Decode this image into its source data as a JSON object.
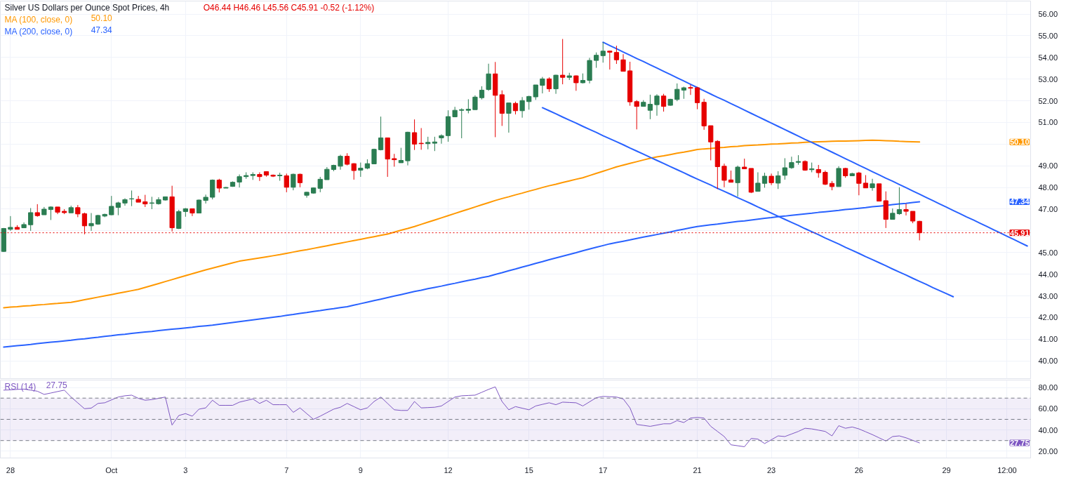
{
  "chart_data": [
    {
      "type": "candlestick",
      "title": "Silver US Dollars per Ounce Spot Prices, 4h",
      "subtitle": "O46.44 H46.46 L45.56 C45.91 -0.52 (-1.12%)",
      "categories": [
        null,
        null,
        null,
        null,
        null,
        null,
        null,
        null,
        null,
        null,
        null,
        null,
        null,
        null,
        null,
        null,
        null,
        null,
        null,
        null,
        null,
        null,
        null,
        null,
        null,
        null,
        null,
        null,
        null,
        null,
        null,
        null,
        null,
        null,
        null,
        null,
        null,
        null,
        null,
        null,
        null,
        null,
        null,
        null,
        null,
        null,
        null,
        null,
        null,
        null,
        null,
        null,
        null,
        null,
        null,
        null,
        null,
        null,
        null,
        null,
        null,
        null,
        null,
        null,
        null,
        null,
        null,
        null,
        null,
        null,
        null,
        null,
        null,
        null,
        null,
        null,
        null,
        null,
        null,
        null,
        null,
        null,
        null,
        null,
        null,
        null,
        null,
        null,
        null,
        null,
        null,
        null,
        null,
        null,
        null,
        null,
        null,
        null,
        null,
        null,
        null,
        null,
        null,
        null,
        null,
        null,
        null,
        null,
        null,
        null,
        null,
        null,
        null,
        null,
        null,
        null,
        null,
        null,
        null,
        null,
        null,
        null,
        null,
        null,
        null,
        null,
        null,
        null,
        null,
        null,
        null,
        null,
        null,
        null,
        null,
        null,
        null,
        null,
        null,
        null,
        null,
        null,
        null,
        null,
        null,
        null,
        null,
        null,
        null,
        null,
        null,
        null,
        null
      ],
      "ohlc": [
        [
          45.05,
          46.13,
          45.03,
          46.11
        ],
        [
          46.07,
          46.68,
          46.0,
          46.16
        ],
        [
          46.16,
          46.26,
          46.07,
          46.07
        ],
        [
          46.14,
          46.39,
          46.14,
          46.29
        ],
        [
          46.28,
          47.05,
          46.0,
          46.84
        ],
        [
          46.84,
          47.23,
          46.65,
          46.7
        ],
        [
          46.74,
          47.1,
          46.74,
          47.0
        ],
        [
          46.98,
          47.13,
          46.5,
          47.1
        ],
        [
          47.1,
          47.1,
          46.77,
          46.86
        ],
        [
          46.9,
          47.0,
          46.77,
          46.84
        ],
        [
          46.83,
          47.16,
          46.83,
          47.07
        ],
        [
          47.07,
          47.19,
          46.63,
          46.78
        ],
        [
          46.79,
          46.84,
          45.84,
          46.23
        ],
        [
          46.23,
          46.82,
          46.0,
          46.34
        ],
        [
          46.31,
          46.74,
          46.28,
          46.71
        ],
        [
          46.68,
          46.79,
          46.63,
          46.76
        ],
        [
          46.74,
          47.61,
          46.72,
          47.13
        ],
        [
          47.08,
          47.34,
          46.72,
          47.29
        ],
        [
          47.28,
          47.5,
          47.16,
          47.44
        ],
        [
          47.47,
          47.86,
          47.14,
          47.48
        ],
        [
          47.45,
          47.61,
          47.32,
          47.32
        ],
        [
          47.34,
          47.66,
          47.1,
          47.24
        ],
        [
          47.27,
          47.57,
          47.0,
          47.29
        ],
        [
          47.25,
          47.55,
          47.21,
          47.44
        ],
        [
          47.42,
          47.57,
          47.4,
          47.57
        ],
        [
          47.57,
          48.08,
          45.97,
          46.14
        ],
        [
          46.11,
          46.97,
          46.08,
          46.89
        ],
        [
          46.89,
          47.05,
          46.65,
          47.02
        ],
        [
          47.02,
          47.02,
          46.68,
          46.82
        ],
        [
          46.82,
          47.44,
          46.82,
          47.42
        ],
        [
          47.4,
          47.67,
          47.26,
          47.55
        ],
        [
          47.55,
          48.37,
          47.45,
          48.34
        ],
        [
          48.34,
          48.4,
          47.77,
          47.97
        ],
        [
          47.97,
          48.03,
          47.97,
          48.0
        ],
        [
          48.05,
          48.28,
          48.03,
          48.24
        ],
        [
          48.25,
          48.6,
          48.0,
          48.5
        ],
        [
          48.5,
          48.7,
          48.4,
          48.55
        ],
        [
          48.55,
          48.7,
          48.35,
          48.6
        ],
        [
          48.6,
          48.7,
          48.3,
          48.5
        ],
        [
          48.73,
          48.75,
          48.5,
          48.57
        ],
        [
          48.57,
          48.6,
          48.48,
          48.52
        ],
        [
          48.54,
          48.68,
          48.31,
          48.57
        ],
        [
          48.54,
          48.64,
          47.78,
          48.01
        ],
        [
          48.01,
          48.64,
          47.87,
          48.61
        ],
        [
          48.61,
          48.64,
          48.01,
          48.22
        ],
        [
          47.64,
          47.8,
          47.53,
          47.78
        ],
        [
          47.74,
          48.0,
          47.72,
          47.98
        ],
        [
          47.96,
          48.49,
          47.78,
          48.38
        ],
        [
          48.36,
          48.94,
          48.36,
          48.84
        ],
        [
          48.83,
          49.05,
          48.75,
          49.02
        ],
        [
          48.98,
          49.51,
          48.82,
          49.44
        ],
        [
          49.44,
          49.58,
          49.02,
          49.07
        ],
        [
          49.1,
          49.12,
          48.36,
          48.78
        ],
        [
          48.8,
          49.15,
          48.49,
          48.89
        ],
        [
          48.89,
          49.3,
          48.84,
          49.1
        ],
        [
          49.09,
          49.79,
          49.09,
          49.76
        ],
        [
          49.74,
          51.27,
          49.71,
          50.29
        ],
        [
          50.29,
          50.29,
          48.49,
          49.31
        ],
        [
          49.33,
          49.55,
          48.96,
          49.28
        ],
        [
          49.14,
          49.83,
          49.14,
          49.25
        ],
        [
          49.23,
          50.57,
          49.02,
          50.55
        ],
        [
          50.53,
          51.14,
          49.73,
          50.0
        ],
        [
          50.04,
          50.74,
          49.74,
          50.02
        ],
        [
          50.02,
          50.34,
          49.76,
          50.08
        ],
        [
          50.04,
          50.34,
          49.68,
          50.1
        ],
        [
          50.29,
          50.45,
          50.02,
          50.39
        ],
        [
          50.39,
          51.56,
          50.11,
          51.27
        ],
        [
          51.26,
          51.72,
          51.24,
          51.56
        ],
        [
          51.56,
          51.65,
          50.27,
          51.59
        ],
        [
          51.56,
          52.07,
          51.42,
          51.61
        ],
        [
          51.59,
          52.25,
          51.59,
          52.17
        ],
        [
          52.14,
          52.67,
          52.06,
          52.49
        ],
        [
          52.52,
          53.71,
          52.46,
          53.24
        ],
        [
          53.24,
          53.79,
          50.32,
          52.25
        ],
        [
          52.28,
          52.48,
          50.84,
          51.42
        ],
        [
          51.42,
          51.9,
          50.53,
          51.9
        ],
        [
          51.88,
          51.96,
          51.37,
          51.54
        ],
        [
          51.54,
          52.17,
          51.22,
          52.01
        ],
        [
          51.96,
          52.23,
          51.59,
          52.2
        ],
        [
          52.18,
          52.73,
          52.04,
          52.73
        ],
        [
          52.71,
          53.1,
          52.34,
          53.01
        ],
        [
          53.01,
          53.08,
          52.41,
          52.55
        ],
        [
          52.55,
          53.2,
          52.32,
          53.18
        ],
        [
          53.18,
          54.85,
          52.76,
          53.08
        ],
        [
          53.08,
          53.29,
          52.96,
          53.15
        ],
        [
          53.15,
          53.17,
          52.46,
          52.83
        ],
        [
          52.83,
          53.26,
          52.8,
          52.94
        ],
        [
          52.94,
          53.98,
          52.8,
          53.86
        ],
        [
          53.86,
          54.23,
          53.52,
          54.1
        ],
        [
          54.08,
          54.7,
          53.76,
          54.29
        ],
        [
          54.29,
          54.31,
          53.44,
          54.24
        ],
        [
          54.23,
          54.54,
          53.7,
          53.89
        ],
        [
          53.89,
          54.15,
          53.36,
          53.36
        ],
        [
          53.38,
          53.8,
          51.77,
          51.95
        ],
        [
          51.96,
          52.03,
          50.68,
          51.74
        ],
        [
          51.74,
          52.03,
          51.74,
          51.93
        ],
        [
          51.56,
          52.28,
          51.15,
          51.84
        ],
        [
          51.82,
          52.3,
          51.31,
          52.22
        ],
        [
          52.22,
          52.32,
          51.5,
          51.74
        ],
        [
          51.79,
          52.09,
          51.77,
          52.07
        ],
        [
          52.06,
          52.8,
          51.98,
          52.53
        ],
        [
          52.49,
          52.65,
          52.09,
          52.6
        ],
        [
          52.61,
          52.74,
          52.27,
          52.58
        ],
        [
          52.6,
          52.64,
          51.61,
          51.91
        ],
        [
          51.93,
          52.09,
          50.66,
          50.84
        ],
        [
          50.85,
          50.85,
          49.25,
          50.1
        ],
        [
          50.13,
          50.18,
          47.93,
          48.96
        ],
        [
          48.98,
          49.1,
          48.01,
          48.33
        ],
        [
          48.35,
          48.78,
          48.24,
          48.24
        ],
        [
          48.22,
          49.01,
          47.58,
          48.94
        ],
        [
          48.94,
          49.33,
          48.86,
          48.86
        ],
        [
          48.88,
          48.88,
          47.74,
          47.78
        ],
        [
          47.82,
          48.7,
          47.82,
          48.2
        ],
        [
          48.19,
          48.68,
          47.99,
          48.52
        ],
        [
          48.52,
          48.64,
          48.11,
          48.22
        ],
        [
          48.2,
          48.75,
          47.93,
          48.54
        ],
        [
          48.56,
          49.35,
          48.36,
          48.91
        ],
        [
          48.91,
          49.42,
          48.86,
          49.15
        ],
        [
          49.16,
          49.49,
          49.05,
          49.2
        ],
        [
          49.2,
          49.25,
          48.77,
          48.8
        ],
        [
          48.82,
          49.15,
          48.7,
          48.86
        ],
        [
          48.83,
          49.04,
          48.45,
          48.68
        ],
        [
          48.7,
          48.78,
          48.11,
          48.15
        ],
        [
          48.19,
          48.3,
          47.87,
          48.04
        ],
        [
          48.04,
          48.98,
          48.04,
          48.88
        ],
        [
          48.88,
          48.91,
          48.45,
          48.54
        ],
        [
          48.54,
          48.68,
          48.54,
          48.64
        ],
        [
          48.67,
          48.72,
          47.64,
          48.19
        ],
        [
          48.2,
          48.57,
          47.98,
          47.98
        ],
        [
          47.99,
          48.4,
          47.85,
          48.17
        ],
        [
          48.17,
          48.17,
          47.37,
          47.37
        ],
        [
          47.39,
          47.82,
          46.13,
          46.53
        ],
        [
          46.53,
          47.03,
          46.53,
          46.81
        ],
        [
          46.79,
          48.01,
          46.74,
          46.98
        ],
        [
          46.98,
          47.25,
          46.71,
          46.9
        ],
        [
          46.9,
          46.9,
          46.35,
          46.45
        ],
        [
          46.44,
          46.46,
          45.56,
          45.91
        ],
        null,
        null,
        null,
        null,
        null,
        null,
        null,
        null,
        null,
        null,
        null,
        null,
        null,
        null,
        null,
        null
      ],
      "colors": [
        "#2b7d52",
        "#2b7d52",
        "#e60000",
        "#2b7d52",
        "#2b7d52",
        "#e60000",
        "#2b7d52",
        "#2b7d52",
        "#e60000",
        "#e60000",
        "#2b7d52",
        "#e60000",
        "#e60000",
        "#2b7d52",
        "#2b7d52",
        "#2b7d52",
        "#2b7d52",
        "#2b7d52",
        "#2b7d52",
        "#2b7d52",
        "#e60000",
        "#e60000",
        "#2b7d52",
        "#2b7d52",
        "#2b7d52",
        "#e60000",
        "#2b7d52",
        "#2b7d52",
        "#e60000",
        "#2b7d52",
        "#2b7d52",
        "#2b7d52",
        "#e60000",
        "#2b7d52",
        "#2b7d52",
        "#2b7d52",
        "#2b7d52",
        "#2b7d52",
        "#e60000",
        "#e60000",
        "#e60000",
        "#2b7d52",
        "#e60000",
        "#2b7d52",
        "#e60000",
        "#2b7d52",
        "#2b7d52",
        "#2b7d52",
        "#2b7d52",
        "#2b7d52",
        "#2b7d52",
        "#e60000",
        "#e60000",
        "#2b7d52",
        "#2b7d52",
        "#2b7d52",
        "#2b7d52",
        "#e60000",
        "#e60000",
        "#2b7d52",
        "#2b7d52",
        "#e60000",
        "#e60000",
        "#2b7d52",
        "#2b7d52",
        "#2b7d52",
        "#2b7d52",
        "#2b7d52",
        "#2b7d52",
        "#2b7d52",
        "#2b7d52",
        "#2b7d52",
        "#2b7d52",
        "#e60000",
        "#e60000",
        "#2b7d52",
        "#e60000",
        "#2b7d52",
        "#2b7d52",
        "#2b7d52",
        "#2b7d52",
        "#e60000",
        "#2b7d52",
        "#e60000",
        "#2b7d52",
        "#e60000",
        "#2b7d52",
        "#2b7d52",
        "#2b7d52",
        "#2b7d52",
        "#e60000",
        "#e60000",
        "#e60000",
        "#e60000",
        "#e60000",
        "#2b7d52",
        "#2b7d52",
        "#2b7d52",
        "#e60000",
        "#2b7d52",
        "#2b7d52",
        "#2b7d52",
        "#e60000",
        "#e60000",
        "#e60000",
        "#e60000",
        "#e60000",
        "#e60000",
        "#e60000",
        "#2b7d52",
        "#e60000",
        "#e60000",
        "#2b7d52",
        "#2b7d52",
        "#e60000",
        "#2b7d52",
        "#2b7d52",
        "#2b7d52",
        "#2b7d52",
        "#e60000",
        "#2b7d52",
        "#e60000",
        "#e60000",
        "#e60000",
        "#2b7d52",
        "#e60000",
        "#2b7d52",
        "#e60000",
        "#e60000",
        "#2b7d52",
        "#e60000",
        "#e60000",
        "#2b7d52",
        "#2b7d52",
        "#e60000",
        "#e60000",
        "#e60000",
        null,
        null,
        null,
        null,
        null,
        null,
        null,
        null,
        null,
        null,
        null,
        null,
        null,
        null,
        null,
        null
      ],
      "series": [
        {
          "type": "line",
          "name": "MA (100, close, 0)",
          "color": "#ff9800",
          "values": [
            42.45,
            42.48,
            42.5,
            42.53,
            42.55,
            42.58,
            42.6,
            42.63,
            42.65,
            42.68,
            42.7,
            42.76,
            42.82,
            42.88,
            42.94,
            43.0,
            43.06,
            43.12,
            43.18,
            43.24,
            43.3,
            43.39,
            43.48,
            43.57,
            43.66,
            43.75,
            43.84,
            43.93,
            44.02,
            44.11,
            44.2,
            44.28,
            44.36,
            44.44,
            44.52,
            44.6,
            44.65,
            44.7,
            44.75,
            44.8,
            44.85,
            44.9,
            44.96,
            45.02,
            45.08,
            45.13,
            45.19,
            45.25,
            45.31,
            45.37,
            45.43,
            45.49,
            45.55,
            45.61,
            45.67,
            45.73,
            45.79,
            45.85,
            45.94,
            46.03,
            46.11,
            46.2,
            46.3,
            46.4,
            46.5,
            46.6,
            46.7,
            46.8,
            46.9,
            47.0,
            47.1,
            47.2,
            47.3,
            47.4,
            47.49,
            47.57,
            47.66,
            47.74,
            47.83,
            47.91,
            48.0,
            48.08,
            48.15,
            48.23,
            48.3,
            48.38,
            48.45,
            48.55,
            48.65,
            48.75,
            48.85,
            48.95,
            49.03,
            49.11,
            49.19,
            49.27,
            49.35,
            49.41,
            49.46,
            49.52,
            49.58,
            49.63,
            49.69,
            49.75,
            49.78,
            49.8,
            49.83,
            49.85,
            49.88,
            49.9,
            49.93,
            49.95,
            49.96,
            49.98,
            50.0,
            50.01,
            50.03,
            50.05,
            50.06,
            50.08,
            50.1,
            50.11,
            50.12,
            50.13,
            50.14,
            50.14,
            50.15,
            50.16,
            50.17,
            50.18,
            50.17,
            50.16,
            50.15,
            50.13,
            50.12,
            50.11,
            50.1,
            null,
            null,
            null,
            null,
            null,
            null,
            null,
            null,
            null,
            null,
            null,
            null,
            null,
            null,
            null,
            null
          ]
        },
        {
          "type": "line",
          "name": "MA (200, close, 0)",
          "color": "#2962ff",
          "values": [
            40.64,
            40.67,
            40.7,
            40.73,
            40.76,
            40.8,
            40.83,
            40.86,
            40.89,
            40.92,
            40.95,
            40.99,
            41.02,
            41.06,
            41.09,
            41.13,
            41.16,
            41.2,
            41.23,
            41.27,
            41.3,
            41.33,
            41.36,
            41.4,
            41.43,
            41.46,
            41.49,
            41.52,
            41.55,
            41.59,
            41.62,
            41.65,
            41.69,
            41.73,
            41.77,
            41.81,
            41.85,
            41.89,
            41.93,
            41.97,
            42.01,
            42.05,
            42.1,
            42.14,
            42.19,
            42.23,
            42.28,
            42.32,
            42.37,
            42.41,
            42.46,
            42.5,
            42.57,
            42.64,
            42.71,
            42.78,
            42.85,
            42.92,
            42.99,
            43.06,
            43.13,
            43.2,
            43.26,
            43.33,
            43.39,
            43.45,
            43.52,
            43.58,
            43.65,
            43.71,
            43.77,
            43.84,
            43.9,
            43.99,
            44.07,
            44.16,
            44.24,
            44.33,
            44.41,
            44.5,
            44.58,
            44.67,
            44.75,
            44.83,
            44.91,
            44.99,
            45.08,
            45.16,
            45.24,
            45.32,
            45.4,
            45.46,
            45.52,
            45.58,
            45.65,
            45.71,
            45.77,
            45.83,
            45.89,
            45.95,
            46.02,
            46.08,
            46.14,
            46.2,
            46.24,
            46.28,
            46.31,
            46.35,
            46.39,
            46.43,
            46.46,
            46.5,
            46.54,
            46.58,
            46.61,
            46.65,
            46.68,
            46.72,
            46.75,
            46.78,
            46.81,
            46.85,
            46.88,
            46.91,
            46.94,
            46.98,
            47.01,
            47.04,
            47.07,
            47.11,
            47.14,
            47.17,
            47.21,
            47.24,
            47.27,
            47.31,
            47.34,
            null,
            null,
            null,
            null,
            null,
            null,
            null,
            null,
            null,
            null,
            null,
            null,
            null,
            null,
            null,
            null
          ]
        },
        {
          "type": "line",
          "color": "#2962ff",
          "values": [
            null,
            null,
            null,
            null,
            null,
            null,
            null,
            null,
            null,
            null,
            null,
            null,
            null,
            null,
            null,
            null,
            null,
            null,
            null,
            null,
            null,
            null,
            null,
            null,
            null,
            null,
            null,
            null,
            null,
            null,
            null,
            null,
            null,
            null,
            null,
            null,
            null,
            null,
            null,
            null,
            null,
            null,
            null,
            null,
            null,
            null,
            null,
            null,
            null,
            null,
            null,
            null,
            null,
            null,
            null,
            null,
            null,
            null,
            null,
            null,
            null,
            null,
            null,
            null,
            null,
            null,
            null,
            null,
            null,
            null,
            null,
            null,
            null,
            null,
            null,
            null,
            null,
            null,
            null,
            null,
            null,
            null,
            null,
            null,
            null,
            null,
            null,
            null,
            null,
            54.7,
            54.55,
            54.4,
            54.25,
            54.1,
            53.95,
            53.81,
            53.66,
            53.51,
            53.36,
            53.21,
            53.06,
            52.91,
            52.76,
            52.61,
            52.46,
            52.31,
            52.16,
            52.02,
            51.87,
            51.72,
            51.57,
            51.42,
            51.27,
            51.12,
            50.97,
            50.82,
            50.67,
            50.52,
            50.37,
            50.22,
            50.08,
            49.93,
            49.78,
            49.63,
            49.48,
            49.33,
            49.18,
            49.03,
            48.88,
            48.73,
            48.58,
            48.43,
            48.29,
            48.14,
            47.99,
            47.84,
            47.69,
            47.54,
            47.39,
            47.24,
            47.09,
            46.94,
            46.79,
            46.64,
            46.5,
            46.35,
            46.2,
            46.05,
            45.9,
            45.75,
            45.6,
            45.45,
            45.3
          ]
        },
        {
          "type": "line",
          "color": "#2962ff",
          "values": [
            null,
            null,
            null,
            null,
            null,
            null,
            null,
            null,
            null,
            null,
            null,
            null,
            null,
            null,
            null,
            null,
            null,
            null,
            null,
            null,
            null,
            null,
            null,
            null,
            null,
            null,
            null,
            null,
            null,
            null,
            null,
            null,
            null,
            null,
            null,
            null,
            null,
            null,
            null,
            null,
            null,
            null,
            null,
            null,
            null,
            null,
            null,
            null,
            null,
            null,
            null,
            null,
            null,
            null,
            null,
            null,
            null,
            null,
            null,
            null,
            null,
            null,
            null,
            null,
            null,
            null,
            null,
            null,
            null,
            null,
            null,
            null,
            null,
            null,
            null,
            null,
            null,
            null,
            null,
            null,
            51.68,
            51.54,
            51.4,
            51.25,
            51.11,
            50.97,
            50.82,
            50.68,
            50.54,
            50.39,
            50.25,
            50.11,
            49.97,
            49.82,
            49.68,
            49.54,
            49.39,
            49.25,
            49.11,
            48.96,
            48.82,
            48.68,
            48.53,
            48.39,
            48.25,
            48.11,
            47.96,
            47.82,
            47.68,
            47.53,
            47.39,
            47.25,
            47.1,
            46.96,
            46.82,
            46.67,
            46.53,
            46.39,
            46.25,
            46.1,
            45.96,
            45.82,
            45.67,
            45.53,
            45.39,
            45.24,
            45.1,
            44.96,
            44.81,
            44.67,
            44.53,
            44.39,
            44.24,
            44.1,
            43.96,
            43.81,
            43.67,
            43.53,
            43.38,
            43.24,
            43.1,
            42.96,
            null,
            null,
            null,
            null,
            null,
            null,
            null,
            null,
            null,
            null,
            null
          ]
        }
      ],
      "annotations": [
        "50.10",
        "47.34"
      ],
      "ref_lines": [
        {
          "axis": "y",
          "value": 45.91,
          "label": "45.91",
          "color": "#e60000",
          "line_style": "dotted"
        }
      ],
      "ylim": [
        39.18,
        56.6
      ],
      "yticks": [
        {
          "value": 40,
          "label": "40.00"
        },
        {
          "value": 41,
          "label": "41.00"
        },
        {
          "value": 42,
          "label": "42.00"
        },
        {
          "value": 43,
          "label": "43.00"
        },
        {
          "value": 44,
          "label": "44.00"
        },
        {
          "value": 45,
          "label": "45.00"
        },
        {
          "value": 46,
          "label": null
        },
        {
          "value": 47,
          "label": "47.00"
        },
        {
          "value": 48,
          "label": "48.00"
        },
        {
          "value": 49,
          "label": "49.00"
        },
        {
          "value": 50,
          "label": null
        },
        {
          "value": 51,
          "label": "51.00"
        },
        {
          "value": 52,
          "label": "52.00"
        },
        {
          "value": 53,
          "label": "53.00"
        },
        {
          "value": 54,
          "label": "54.00"
        },
        {
          "value": 55,
          "label": "55.00"
        },
        {
          "value": 56,
          "label": "56.00"
        }
      ],
      "tick_labels": "y",
      "grid": true,
      "legend": "top left",
      "line_style": "solid"
    },
    {
      "type": "line",
      "categories": [
        null,
        "28",
        null,
        null,
        null,
        null,
        null,
        null,
        null,
        null,
        null,
        null,
        null,
        null,
        null,
        null,
        "Oct",
        null,
        null,
        null,
        null,
        null,
        null,
        null,
        null,
        null,
        null,
        "3",
        null,
        null,
        null,
        null,
        null,
        null,
        null,
        null,
        null,
        null,
        null,
        null,
        null,
        null,
        "7",
        null,
        null,
        null,
        null,
        null,
        null,
        null,
        null,
        null,
        null,
        "9",
        null,
        null,
        null,
        null,
        null,
        null,
        null,
        null,
        null,
        null,
        null,
        null,
        "12",
        null,
        null,
        null,
        null,
        null,
        null,
        null,
        null,
        null,
        null,
        null,
        "15",
        null,
        null,
        null,
        null,
        null,
        null,
        null,
        null,
        null,
        null,
        "17",
        null,
        null,
        null,
        null,
        null,
        null,
        null,
        null,
        null,
        null,
        null,
        null,
        null,
        "21",
        null,
        null,
        null,
        null,
        null,
        null,
        null,
        null,
        null,
        null,
        "23",
        null,
        null,
        null,
        null,
        null,
        null,
        null,
        null,
        null,
        null,
        null,
        null,
        "26",
        null,
        null,
        null,
        null,
        null,
        null,
        null,
        null,
        null,
        null,
        null,
        null,
        "29",
        null,
        null,
        null,
        null,
        null,
        null,
        null,
        null,
        "12:00",
        null,
        null,
        null
      ],
      "series": [
        {
          "name": "RSI (14)",
          "color": "#7e57c2",
          "values": [
            77.5,
            77.8,
            78.2,
            78.5,
            77.5,
            76.5,
            73.5,
            74.8,
            76.2,
            77.5,
            71.0,
            65.5,
            60.0,
            60.6,
            65.0,
            65.6,
            68.3,
            71.0,
            72.2,
            72.8,
            69.8,
            68.0,
            68.6,
            69.8,
            71.0,
            44.6,
            53.6,
            55.4,
            53.0,
            59.6,
            60.8,
            68.0,
            63.2,
            63.2,
            63.2,
            66.2,
            67.7,
            69.2,
            65.0,
            68.0,
            63.8,
            63.8,
            63.8,
            56.6,
            60.8,
            55.4,
            50.0,
            53.0,
            56.3,
            59.6,
            61.4,
            65.0,
            62.0,
            59.0,
            60.8,
            66.8,
            71.0,
            65.0,
            59.0,
            58.4,
            58.4,
            66.8,
            60.8,
            61.1,
            61.4,
            62.6,
            66.8,
            71.0,
            72.2,
            72.5,
            72.8,
            75.5,
            78.2,
            80.6,
            66.8,
            59.0,
            62.0,
            60.5,
            59.0,
            62.6,
            64.1,
            65.6,
            63.8,
            66.2,
            65.9,
            65.6,
            62.6,
            66.5,
            70.4,
            71.6,
            71.3,
            71.0,
            69.2,
            60.8,
            45.2,
            44.3,
            43.4,
            44.6,
            45.8,
            45.8,
            48.8,
            47.0,
            51.2,
            51.8,
            51.2,
            43.4,
            38.6,
            33.8,
            26.0,
            25.1,
            24.2,
            32.0,
            31.4,
            27.2,
            30.8,
            34.4,
            33.8,
            36.2,
            38.6,
            41.6,
            41.0,
            39.8,
            38.6,
            34.4,
            44.0,
            41.6,
            42.8,
            41.0,
            38.3,
            35.6,
            32.6,
            29.6,
            33.8,
            34.4,
            32.6,
            30.2,
            27.8,
            null,
            null,
            null,
            null,
            null,
            null,
            null,
            null,
            null,
            null,
            null,
            null,
            null,
            null,
            null,
            null
          ]
        }
      ],
      "annotations": [
        "27.75"
      ],
      "bands": [
        {
          "axis": "y",
          "from": 30,
          "to": 70,
          "color": "#7e57c2"
        }
      ],
      "ref_lines": [
        {
          "axis": "y",
          "value": 70,
          "color": "#787b86",
          "line_style": "dashed"
        },
        {
          "axis": "y",
          "value": 50,
          "color": "#787b86",
          "line_style": "dashed"
        },
        {
          "axis": "y",
          "value": 30,
          "color": "#787b86",
          "line_style": "dashed"
        }
      ],
      "ylim": [
        13.6,
        87
      ],
      "yticks": [
        {
          "value": 20,
          "label": "20.00"
        },
        {
          "value": 40,
          "label": "40.00"
        },
        {
          "value": 60,
          "label": "60.00"
        },
        {
          "value": 80,
          "label": "80.00"
        }
      ],
      "grid": true,
      "legend": "top left",
      "line_style": "solid"
    }
  ]
}
